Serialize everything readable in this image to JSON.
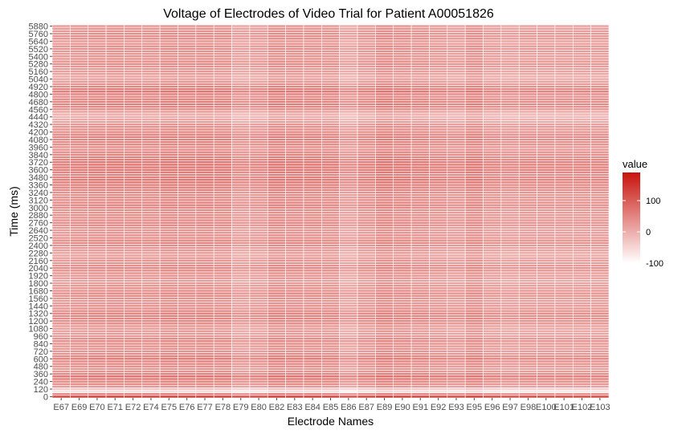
{
  "chart_data": {
    "type": "heatmap",
    "title": "Voltage of Electrodes of Video Trial for Patient A00051826",
    "xlabel": "Electrode Names",
    "ylabel": "Time (ms)",
    "x_categories": [
      "E67",
      "E69",
      "E70",
      "E71",
      "E72",
      "E74",
      "E75",
      "E76",
      "E77",
      "E78",
      "E79",
      "E80",
      "E82",
      "E83",
      "E84",
      "E85",
      "E86",
      "E87",
      "E89",
      "E90",
      "E91",
      "E92",
      "E93",
      "E95",
      "E96",
      "E97",
      "E98",
      "E100",
      "E101",
      "E102",
      "E103"
    ],
    "y_values_ms": [
      0,
      40,
      80,
      120,
      160,
      200,
      240,
      280,
      320,
      360,
      400,
      440,
      480,
      520,
      560,
      600,
      640,
      680,
      720,
      760,
      800,
      840,
      880,
      920,
      960,
      1000,
      1040,
      1080,
      1120,
      1160,
      1200,
      1240,
      1280,
      1320,
      1360,
      1400,
      1440,
      1480,
      1520,
      1560,
      1600,
      1640,
      1680,
      1720,
      1760,
      1800,
      1840,
      1880,
      1920,
      1960,
      2000,
      2040,
      2080,
      2120,
      2160,
      2200,
      2240,
      2280,
      2320,
      2360,
      2400,
      2440,
      2480,
      2520,
      2560,
      2600,
      2640,
      2680,
      2720,
      2760,
      2800,
      2840,
      2880,
      2920,
      2960,
      3000,
      3040,
      3080,
      3120,
      3160,
      3200,
      3240,
      3280,
      3320,
      3360,
      3400,
      3440,
      3480,
      3520,
      3560,
      3600,
      3640,
      3680,
      3720,
      3760,
      3800,
      3840,
      3880,
      3920,
      3960,
      4000,
      4040,
      4080,
      4120,
      4160,
      4200,
      4240,
      4280,
      4320,
      4360,
      4400,
      4440,
      4480,
      4520,
      4560,
      4600,
      4640,
      4680,
      4720,
      4760,
      4800,
      4840,
      4880,
      4920,
      4960,
      5000,
      5040,
      5080,
      5120,
      5160,
      5200,
      5240,
      5280,
      5320,
      5360,
      5400,
      5440,
      5480,
      5520,
      5560,
      5600,
      5640,
      5680,
      5720,
      5760,
      5800,
      5840,
      5880
    ],
    "y_tick_labels": [
      "0",
      "120",
      "240",
      "360",
      "480",
      "600",
      "720",
      "840",
      "960",
      "1080",
      "1200",
      "1320",
      "1440",
      "1560",
      "1680",
      "1800",
      "1920",
      "2040",
      "2160",
      "2280",
      "2400",
      "2520",
      "2640",
      "2760",
      "2880",
      "3000",
      "3120",
      "3240",
      "3360",
      "3480",
      "3600",
      "3720",
      "3840",
      "3960",
      "4080",
      "4200",
      "4320",
      "4440",
      "4560",
      "4680",
      "4800",
      "4920",
      "5040",
      "5160",
      "5280",
      "5400",
      "5520",
      "5640",
      "5760",
      "5880"
    ],
    "row_base_values": [
      130,
      40,
      -70,
      -40,
      20,
      30,
      40,
      55,
      60,
      40,
      25,
      20,
      25,
      35,
      40,
      50,
      40,
      30,
      25,
      20,
      25,
      30,
      35,
      30,
      20,
      15,
      10,
      15,
      20,
      30,
      35,
      40,
      45,
      40,
      35,
      30,
      25,
      20,
      20,
      25,
      30,
      35,
      30,
      25,
      20,
      15,
      10,
      15,
      20,
      25,
      30,
      35,
      30,
      25,
      20,
      15,
      10,
      10,
      15,
      20,
      30,
      35,
      35,
      30,
      25,
      20,
      20,
      25,
      30,
      35,
      35,
      30,
      25,
      25,
      30,
      35,
      40,
      40,
      35,
      30,
      30,
      35,
      40,
      45,
      50,
      55,
      55,
      50,
      45,
      50,
      55,
      60,
      60,
      55,
      50,
      45,
      40,
      35,
      30,
      30,
      35,
      40,
      45,
      45,
      40,
      35,
      30,
      25,
      20,
      10,
      0,
      -10,
      -5,
      10,
      25,
      40,
      50,
      45,
      40,
      35,
      45,
      55,
      50,
      40,
      25,
      15,
      10,
      5,
      10,
      15,
      20,
      25,
      30,
      30,
      25,
      20,
      20,
      25,
      30,
      25,
      20,
      20,
      25,
      30,
      30,
      25,
      20,
      15
    ],
    "column_offsets": [
      0,
      5,
      8,
      10,
      8,
      6,
      12,
      10,
      12,
      8,
      -10,
      -5,
      12,
      10,
      8,
      5,
      -15,
      0,
      15,
      10,
      5,
      0,
      -5,
      10,
      -5,
      -10,
      -5,
      -5,
      -5,
      -5,
      -5
    ],
    "color_scale": {
      "low": -100,
      "high": 190,
      "low_color": "#ffffff",
      "high_color": "#c8130c"
    },
    "legend": {
      "title": "value",
      "labels": [
        "100",
        "0",
        "-100"
      ],
      "label_values": [
        100,
        0,
        -100
      ],
      "placement": "right"
    },
    "grid": "white"
  }
}
